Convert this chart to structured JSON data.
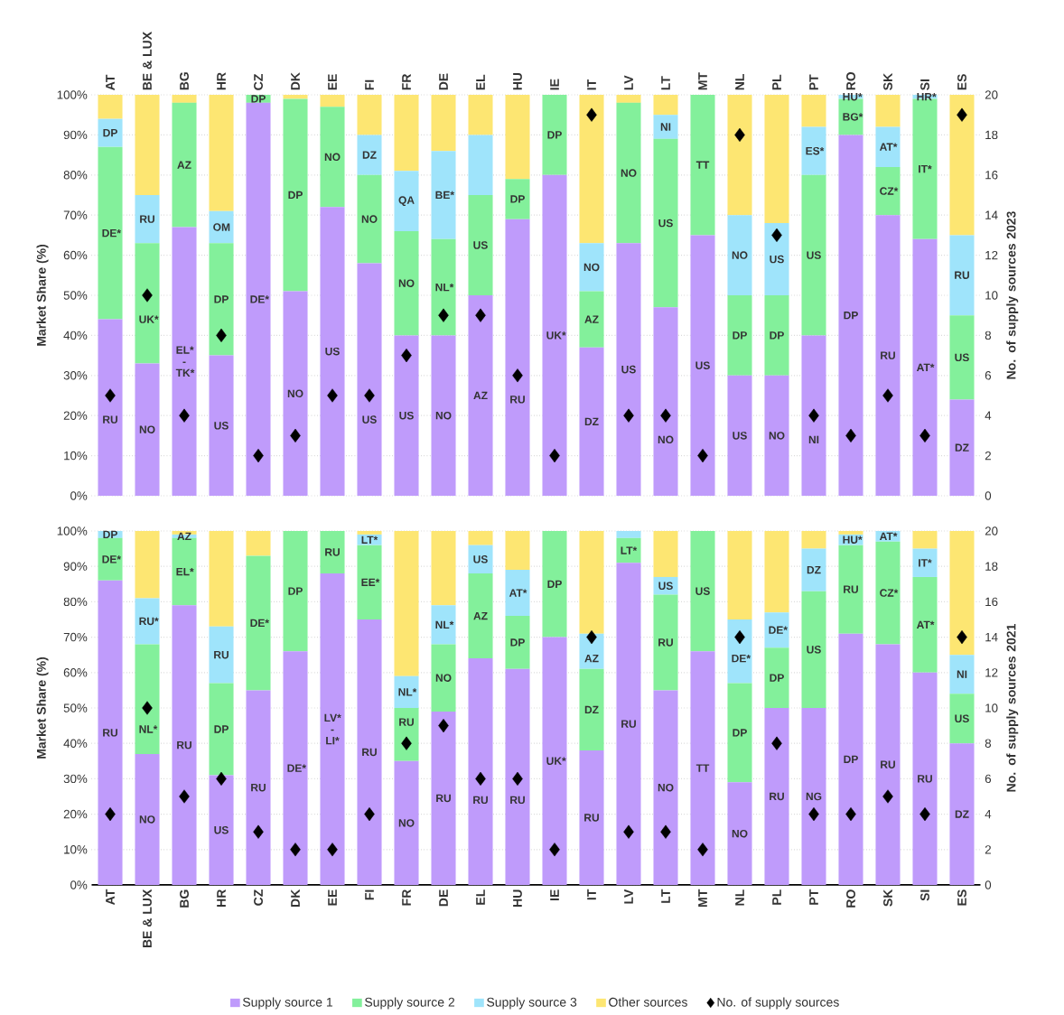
{
  "chart_data": [
    {
      "type": "bar",
      "stacked": true,
      "categories": [
        "AT",
        "BE & LUX",
        "BG",
        "HR",
        "CZ",
        "DK",
        "EE",
        "FI",
        "FR",
        "DE",
        "EL",
        "HU",
        "IE",
        "IT",
        "LV",
        "LT",
        "MT",
        "NL",
        "PL",
        "PT",
        "RO",
        "SK",
        "SI",
        "ES"
      ],
      "ylabel": "Market Share (%)",
      "y2label": "No. of supply sources 2023",
      "ylim": [
        0,
        100
      ],
      "yticks": [
        {
          "value": 0,
          "label": "0%"
        },
        {
          "value": 10,
          "label": "10%"
        },
        {
          "value": 20,
          "label": "20%"
        },
        {
          "value": 30,
          "label": "30%"
        },
        {
          "value": 40,
          "label": "40%"
        },
        {
          "value": 50,
          "label": "50%"
        },
        {
          "value": 60,
          "label": "60%"
        },
        {
          "value": 70,
          "label": "70%"
        },
        {
          "value": 80,
          "label": "80%"
        },
        {
          "value": 90,
          "label": "90%"
        },
        {
          "value": 100,
          "label": "100%"
        }
      ],
      "y2lim": [
        0,
        20
      ],
      "y2ticks": [
        0,
        2,
        4,
        6,
        8,
        10,
        12,
        14,
        16,
        18,
        20
      ],
      "grid": "y",
      "series": [
        {
          "color": "#bf9bfb",
          "values": [
            44,
            33,
            67,
            35,
            98,
            51,
            72,
            58,
            40,
            40,
            50,
            69,
            80,
            37,
            63,
            47,
            65,
            30,
            30,
            40,
            90,
            70,
            64,
            24
          ],
          "value_labels": [
            "RU",
            "NO",
            "EL* - TK*",
            "US",
            "DE*",
            "NO",
            "US",
            "US",
            "US",
            "NO",
            "AZ",
            "RU",
            "UK*",
            "DZ",
            "US",
            "NO",
            "US",
            "US",
            "NO",
            "NI",
            "DP",
            "RU",
            "AT*",
            "DZ"
          ]
        },
        {
          "color": "#83f09b",
          "values": [
            43,
            30,
            31,
            28,
            2,
            48,
            25,
            22,
            26,
            24,
            25,
            10,
            20,
            14,
            35,
            42,
            35,
            20,
            20,
            40,
            9,
            12,
            35,
            21
          ],
          "value_labels": [
            "DE*",
            "UK*",
            "AZ",
            "DP",
            "DP",
            "DP",
            "NO",
            "NO",
            "NO",
            "NL*",
            "US",
            "DP",
            "DP",
            "AZ",
            "NO",
            "US",
            "TT",
            "DP",
            "DP",
            "US",
            "BG*",
            "CZ*",
            "IT*",
            "US"
          ]
        },
        {
          "color": "#9fe4fb",
          "values": [
            7,
            12,
            0,
            8,
            0,
            0,
            0,
            10,
            15,
            22,
            15,
            0,
            0,
            12,
            0,
            6,
            0,
            20,
            18,
            12,
            1,
            10,
            1,
            20
          ],
          "value_labels": [
            "DP",
            "RU",
            null,
            "OM",
            null,
            null,
            null,
            "DZ",
            "QA",
            "BE*",
            null,
            null,
            null,
            "NO",
            null,
            "NI",
            null,
            "NO",
            "US",
            "ES*",
            "HU*",
            "AT*",
            "HR*",
            "RU"
          ]
        },
        {
          "color": "#fde672",
          "values": [
            6,
            25,
            2,
            29,
            0,
            1,
            3,
            10,
            19,
            14,
            10,
            21,
            0,
            37,
            2,
            5,
            0,
            30,
            32,
            8,
            0,
            8,
            0,
            35
          ]
        },
        {
          "type": "scatter",
          "axis": "y2",
          "marker": "diamond",
          "color": "#000000",
          "values": [
            5,
            10,
            4,
            8,
            2,
            3,
            5,
            5,
            7,
            9,
            9,
            6,
            2,
            19,
            4,
            4,
            2,
            18,
            13,
            4,
            3,
            5,
            3,
            19
          ]
        }
      ]
    },
    {
      "type": "bar",
      "stacked": true,
      "categories": [
        "AT",
        "BE & LUX",
        "BG",
        "HR",
        "CZ",
        "DK",
        "EE",
        "FI",
        "FR",
        "DE",
        "EL",
        "HU",
        "IE",
        "IT",
        "LV",
        "LT",
        "MT",
        "NL",
        "PL",
        "PT",
        "RO",
        "SK",
        "SI",
        "ES"
      ],
      "ylabel": "Market Share (%)",
      "y2label": "No. of supply sources 2021",
      "ylim": [
        0,
        100
      ],
      "yticks": [
        {
          "value": 0,
          "label": "0%"
        },
        {
          "value": 10,
          "label": "10%"
        },
        {
          "value": 20,
          "label": "20%"
        },
        {
          "value": 30,
          "label": "30%"
        },
        {
          "value": 40,
          "label": "40%"
        },
        {
          "value": 50,
          "label": "50%"
        },
        {
          "value": 60,
          "label": "60%"
        },
        {
          "value": 70,
          "label": "70%"
        },
        {
          "value": 80,
          "label": "80%"
        },
        {
          "value": 90,
          "label": "90%"
        },
        {
          "value": 100,
          "label": "100%"
        }
      ],
      "y2lim": [
        0,
        20
      ],
      "y2ticks": [
        0,
        2,
        4,
        6,
        8,
        10,
        12,
        14,
        16,
        18,
        20
      ],
      "grid": "y",
      "legend": "bottom",
      "series": [
        {
          "name": "Supply source 1",
          "color": "#bf9bfb",
          "values": [
            86,
            37,
            79,
            31,
            55,
            66,
            88,
            75,
            35,
            49,
            64,
            61,
            70,
            38,
            91,
            55,
            66,
            29,
            50,
            50,
            71,
            68,
            60,
            40
          ],
          "value_labels": [
            "RU",
            "NO",
            "RU",
            "US",
            "RU",
            "DE*",
            "LV* - LI*",
            "RU",
            "NO",
            "RU",
            "RU",
            "RU",
            "UK*",
            "RU",
            "RU",
            "NO",
            "TT",
            "NO",
            "RU",
            "NG",
            "DP",
            "RU",
            "RU",
            "DZ"
          ]
        },
        {
          "name": "Supply source 2",
          "color": "#83f09b",
          "values": [
            12,
            31,
            19,
            26,
            38,
            34,
            12,
            21,
            15,
            19,
            24,
            15,
            30,
            23,
            7,
            27,
            34,
            28,
            17,
            33,
            25,
            29,
            27,
            14
          ],
          "value_labels": [
            "DE*",
            "NL*",
            "EL*",
            "DP",
            "DE*",
            "DP",
            "RU",
            "EE*",
            "RU",
            "NO",
            "AZ",
            "DP",
            "DP",
            "DZ",
            "LT*",
            "RU",
            "US",
            "DP",
            "DP",
            "US",
            "RU",
            "CZ*",
            "AT*",
            "US"
          ]
        },
        {
          "name": "Supply source 3",
          "color": "#9fe4fb",
          "values": [
            2,
            13,
            1,
            16,
            0,
            0,
            0,
            3,
            9,
            11,
            8,
            13,
            0,
            10,
            2,
            5,
            0,
            18,
            10,
            12,
            3,
            3,
            8,
            11
          ],
          "value_labels": [
            "DP",
            "RU*",
            "AZ",
            "RU",
            null,
            null,
            null,
            "LT*",
            "NL*",
            "NL*",
            "US",
            "AT*",
            null,
            "AZ",
            null,
            "US",
            null,
            "DE*",
            "DE*",
            "DZ",
            "HU*",
            "AT*",
            "IT*",
            "NI"
          ]
        },
        {
          "name": "Other sources",
          "color": "#fde672",
          "values": [
            0,
            19,
            1,
            27,
            7,
            0,
            0,
            1,
            41,
            21,
            4,
            11,
            0,
            29,
            0,
            13,
            0,
            25,
            23,
            5,
            1,
            0,
            5,
            35
          ]
        },
        {
          "name": "No. of supply sources",
          "type": "scatter",
          "axis": "y2",
          "marker": "diamond",
          "color": "#000000",
          "values": [
            4,
            10,
            5,
            6,
            3,
            2,
            2,
            4,
            8,
            9,
            6,
            6,
            2,
            14,
            3,
            3,
            2,
            14,
            8,
            4,
            4,
            5,
            4,
            14
          ]
        }
      ]
    }
  ]
}
